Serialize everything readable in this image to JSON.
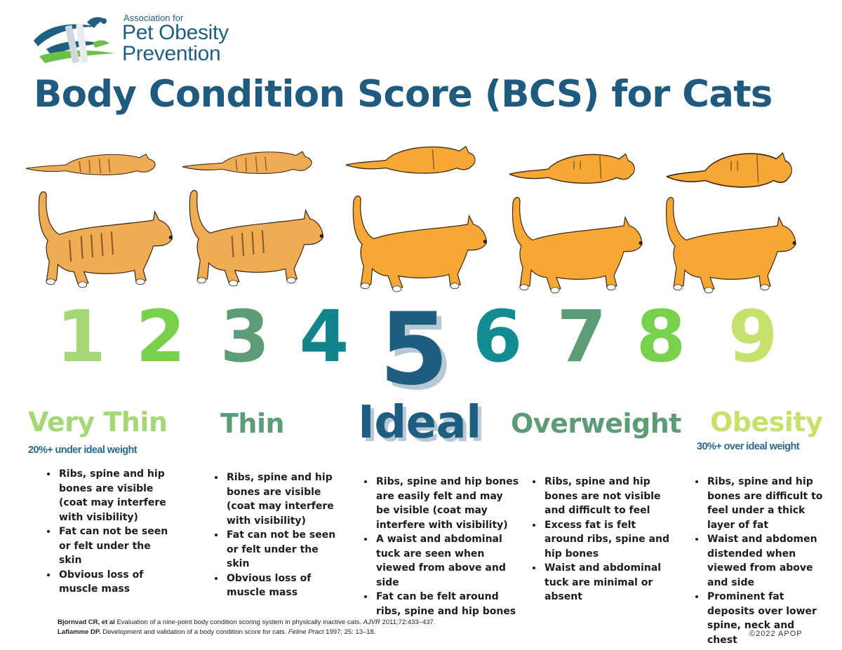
{
  "logo": {
    "line1": "Association for",
    "line2": "Pet Obesity",
    "line3": "Prevention"
  },
  "title": "Body Condition Score (BCS) for Cats",
  "scores": [
    {
      "n": "1",
      "color": "#a5d776"
    },
    {
      "n": "2",
      "color": "#78d04d"
    },
    {
      "n": "3",
      "color": "#5d9c77"
    },
    {
      "n": "4",
      "color": "#12848c"
    },
    {
      "n": "5",
      "color": "#1d5d80"
    },
    {
      "n": "6",
      "color": "#138b92"
    },
    {
      "n": "7",
      "color": "#5d9c77"
    },
    {
      "n": "8",
      "color": "#78d04d"
    },
    {
      "n": "9",
      "color": "#c6e26d"
    }
  ],
  "categories": {
    "very_thin": {
      "label": "Very Thin",
      "sub": "20%+ under ideal weight",
      "bullets": [
        "Ribs, spine and hip bones are visible (coat may interfere with visibility)",
        "Fat can not be seen or felt under the skin",
        "Obvious loss of muscle mass"
      ]
    },
    "thin": {
      "label": "Thin",
      "bullets": [
        "Ribs, spine and hip bones are visible (coat may interfere with visibility)",
        "Fat can not be seen or felt under the skin",
        "Obvious loss of muscle mass"
      ]
    },
    "ideal": {
      "label": "Ideal",
      "bullets": [
        "Ribs, spine and hip bones are easily felt and may be visible (coat may interfere with visibility)",
        "A waist and abdominal tuck are seen when viewed from above and side",
        "Fat can be felt around ribs, spine and hip bones"
      ]
    },
    "overweight": {
      "label": "Overweight",
      "bullets": [
        "Ribs, spine and hip bones are not visible and difficult to feel",
        "Excess fat is felt around ribs, spine and hip bones",
        "Waist and abdominal tuck are minimal or absent"
      ]
    },
    "obesity": {
      "label": "Obesity",
      "sub": "30%+ over ideal  weight",
      "bullets": [
        "Ribs, spine and hip bones are difficult to feel under a thick layer of fat",
        "Waist and abdomen distended when viewed from above and side",
        "Prominent fat deposits over lower spine, neck and chest"
      ]
    }
  },
  "references": [
    {
      "author": "Bjornvad CR, et al",
      "text": " Evaluation of a nine-point body condition scoring system in physically inactive cats. ",
      "journal": "AJVR",
      "tail": " 2011;72:433–437."
    },
    {
      "author": "Laflamme DP.",
      "text": " Development and validation of a body condition score for cats. ",
      "journal": "Feline Pract",
      "tail": " 1997; 25: 13–18."
    }
  ],
  "copyright": "©2022 APOP",
  "colors": {
    "cat_thin": "#f0ac52",
    "cat_ideal": "#f7a733",
    "title": "#1f5b7e"
  }
}
